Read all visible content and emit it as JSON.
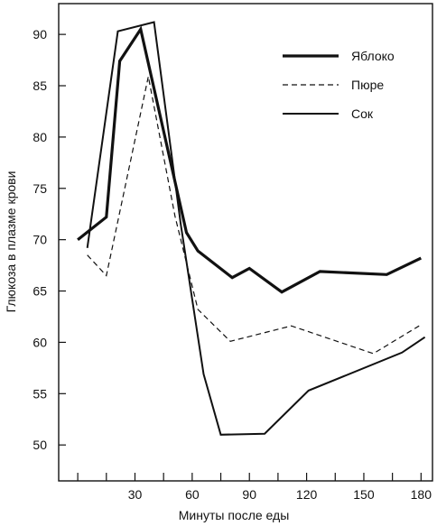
{
  "chart_data": {
    "type": "line",
    "title": "",
    "xlabel": "Минуты после еды",
    "ylabel": "Глюкоза в плазме крови",
    "xlim": [
      -10,
      186
    ],
    "ylim": [
      46.5,
      93
    ],
    "x_ticks": [
      0,
      15,
      30,
      45,
      60,
      75,
      90,
      105,
      120,
      135,
      150,
      165,
      180
    ],
    "x_tick_labels": [
      {
        "x": 30,
        "label": "30"
      },
      {
        "x": 60,
        "label": "60"
      },
      {
        "x": 90,
        "label": "90"
      },
      {
        "x": 120,
        "label": "120"
      },
      {
        "x": 150,
        "label": "150"
      },
      {
        "x": 180,
        "label": "180"
      }
    ],
    "y_ticks": [
      50,
      55,
      60,
      65,
      70,
      75,
      80,
      85,
      90
    ],
    "y_tick_labels": [
      "50",
      "55",
      "60",
      "65",
      "70",
      "75",
      "80",
      "85",
      "90"
    ],
    "grid": false,
    "legend_position": "top-right",
    "series": [
      {
        "name": "Яблоко",
        "style": "thick",
        "points": [
          [
            0,
            70.0
          ],
          [
            15,
            72.2
          ],
          [
            22,
            87.4
          ],
          [
            33,
            90.5
          ],
          [
            57,
            70.7
          ],
          [
            63,
            68.9
          ],
          [
            81,
            66.3
          ],
          [
            90,
            67.2
          ],
          [
            107,
            64.9
          ],
          [
            127,
            66.9
          ],
          [
            162,
            66.6
          ],
          [
            180,
            68.2
          ]
        ]
      },
      {
        "name": "Пюре",
        "style": "dashed",
        "points": [
          [
            5,
            68.5
          ],
          [
            15,
            66.5
          ],
          [
            37,
            85.9
          ],
          [
            51,
            72.3
          ],
          [
            63,
            63.2
          ],
          [
            80,
            60.1
          ],
          [
            112,
            61.6
          ],
          [
            155,
            58.9
          ],
          [
            179,
            61.6
          ]
        ]
      },
      {
        "name": "Сок",
        "style": "thin",
        "points": [
          [
            5,
            69.2
          ],
          [
            21,
            90.3
          ],
          [
            40,
            91.2
          ],
          [
            54,
            71.5
          ],
          [
            66,
            56.9
          ],
          [
            75,
            51.0
          ],
          [
            98,
            51.1
          ],
          [
            121,
            55.3
          ],
          [
            170,
            59.0
          ],
          [
            182,
            60.5
          ]
        ]
      }
    ]
  }
}
